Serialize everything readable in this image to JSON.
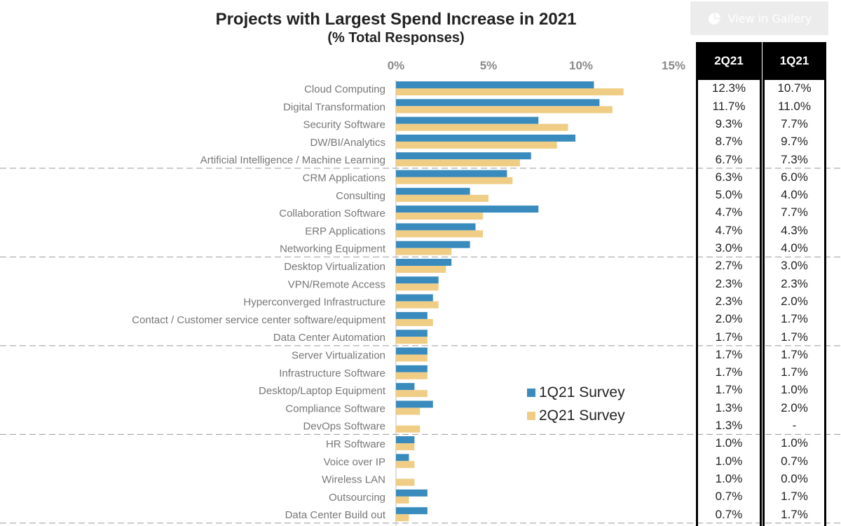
{
  "gallery_button": {
    "label": "View in Gallery",
    "icon": "pie-chart-icon"
  },
  "chart_data": {
    "type": "bar",
    "orientation": "horizontal",
    "title": "Projects with Largest Spend Increase in 2021",
    "subtitle": "(% Total Responses)",
    "x_ticks": [
      "0%",
      "5%",
      "10%",
      "15%"
    ],
    "xlim": [
      0,
      15
    ],
    "categories": [
      "Cloud Computing",
      "Digital Transformation",
      "Security Software",
      "DW/BI/Analytics",
      "Artificial Intelligence / Machine Learning",
      "CRM Applications",
      "Consulting",
      "Collaboration Software",
      "ERP Applications",
      "Networking Equipment",
      "Desktop Virtualization",
      "VPN/Remote Access",
      "Hyperconverged Infrastructure",
      "Contact / Customer service center software/equipment",
      "Data Center Automation",
      "Server Virtualization",
      "Infrastructure Software",
      "Desktop/Laptop Equipment",
      "Compliance Software",
      "DevOps Software",
      "HR Software",
      "Voice over IP",
      "Wireless LAN",
      "Outsourcing",
      "Data Center Build out"
    ],
    "series": [
      {
        "name": "1Q21 Survey",
        "color": "#3a8bbd",
        "values": [
          10.7,
          11.0,
          7.7,
          9.7,
          7.3,
          6.0,
          4.0,
          7.7,
          4.3,
          4.0,
          3.0,
          2.3,
          2.0,
          1.7,
          1.7,
          1.7,
          1.7,
          1.0,
          2.0,
          0,
          1.0,
          0.7,
          0.0,
          1.7,
          1.7
        ]
      },
      {
        "name": "2Q21 Survey",
        "color": "#efcd85",
        "values": [
          12.3,
          11.7,
          9.3,
          8.7,
          6.7,
          6.3,
          5.0,
          4.7,
          4.7,
          3.0,
          2.7,
          2.3,
          2.3,
          2.0,
          1.7,
          1.7,
          1.7,
          1.7,
          1.3,
          1.3,
          1.0,
          1.0,
          1.0,
          0.7,
          0.7
        ]
      }
    ],
    "group_separators_after": [
      4,
      9,
      14,
      19,
      24
    ],
    "legend_position": "inside-bottom-right",
    "grid": false,
    "table": {
      "headers": [
        "2Q21",
        "1Q21"
      ],
      "col_2q21": [
        "12.3%",
        "11.7%",
        "9.3%",
        "8.7%",
        "6.7%",
        "6.3%",
        "5.0%",
        "4.7%",
        "4.7%",
        "3.0%",
        "2.7%",
        "2.3%",
        "2.3%",
        "2.0%",
        "1.7%",
        "1.7%",
        "1.7%",
        "1.7%",
        "1.3%",
        "1.3%",
        "1.0%",
        "1.0%",
        "1.0%",
        "0.7%",
        "0.7%"
      ],
      "col_1q21": [
        "10.7%",
        "11.0%",
        "7.7%",
        "9.7%",
        "7.3%",
        "6.0%",
        "4.0%",
        "7.7%",
        "4.3%",
        "4.0%",
        "3.0%",
        "2.3%",
        "2.0%",
        "1.7%",
        "1.7%",
        "1.7%",
        "1.7%",
        "1.0%",
        "2.0%",
        "-",
        "1.0%",
        "0.7%",
        "0.0%",
        "1.7%",
        "1.7%"
      ]
    }
  }
}
